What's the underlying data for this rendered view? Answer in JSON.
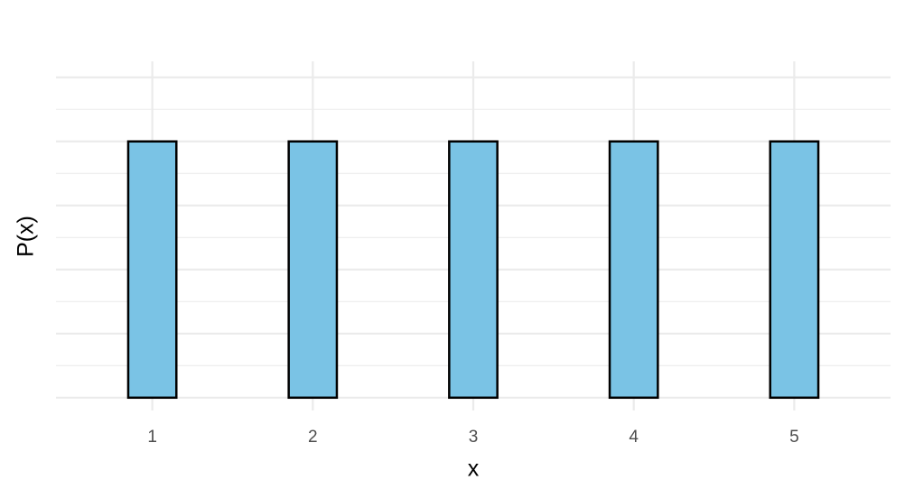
{
  "chart_data": {
    "type": "bar",
    "x_label": "x",
    "y_label": "P(x)",
    "x": [
      1,
      2,
      3,
      4,
      5
    ],
    "values": [
      0.2,
      0.2,
      0.2,
      0.2,
      0.2
    ],
    "color": "#7ac3e5",
    "edge_color": "#000000",
    "bar_width": 0.3,
    "xlim": [
      0.4,
      5.6
    ],
    "xticks": [
      1,
      2,
      3,
      4,
      5
    ],
    "ylim": [
      -0.01,
      0.2625
    ],
    "yticks": [
      0,
      0.05,
      0.1,
      0.15,
      0.2,
      0.25
    ],
    "grid": true,
    "minor_grid": true,
    "show_y_tick_labels": false
  }
}
